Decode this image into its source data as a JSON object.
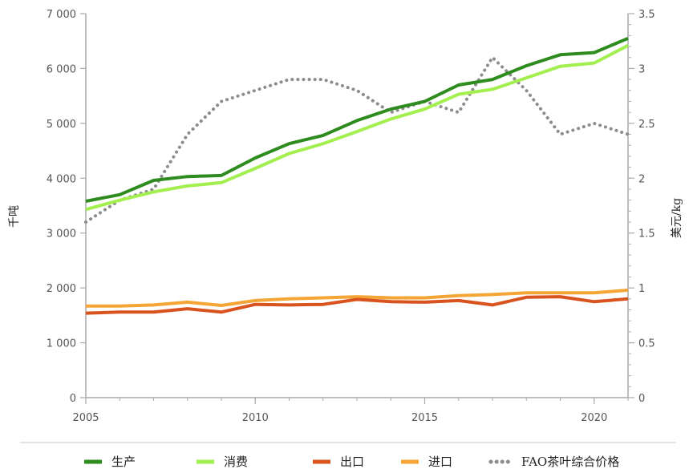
{
  "chart_data": {
    "type": "line",
    "title": "",
    "x": [
      2005,
      2006,
      2007,
      2008,
      2009,
      2010,
      2011,
      2012,
      2013,
      2014,
      2015,
      2016,
      2017,
      2018,
      2019,
      2020,
      2021
    ],
    "x_ticks": [
      "2005",
      "2010",
      "2015",
      "2020"
    ],
    "xlim": [
      2005,
      2021
    ],
    "ylabel_left": "千吨",
    "ylabel_right": "美元/kg",
    "ylim_left": [
      0,
      7000
    ],
    "ylim_right": [
      0,
      3.5
    ],
    "y_ticks_left": [
      "0",
      "1 000",
      "2 000",
      "3 000",
      "4 000",
      "5 000",
      "6 000",
      "7 000"
    ],
    "y_ticks_right": [
      "0",
      "0.5",
      "1",
      "1.5",
      "2",
      "2.5",
      "3",
      "3.5"
    ],
    "grid": false,
    "legend_position": "bottom",
    "series": [
      {
        "name": "生产",
        "axis": "left",
        "color": "#2e8b1e",
        "style": "solid",
        "values": [
          3580,
          3700,
          3960,
          4030,
          4050,
          4370,
          4630,
          4780,
          5050,
          5260,
          5400,
          5700,
          5800,
          6050,
          6250,
          6290,
          6550
        ]
      },
      {
        "name": "消费",
        "axis": "left",
        "color": "#a3ef50",
        "style": "solid",
        "values": [
          3430,
          3600,
          3750,
          3860,
          3920,
          4180,
          4450,
          4630,
          4850,
          5080,
          5260,
          5530,
          5620,
          5830,
          6040,
          6100,
          6420
        ]
      },
      {
        "name": "出口",
        "axis": "left",
        "color": "#d9531e",
        "style": "solid",
        "values": [
          1540,
          1560,
          1560,
          1620,
          1560,
          1700,
          1690,
          1700,
          1790,
          1750,
          1740,
          1770,
          1690,
          1830,
          1840,
          1750,
          1800
        ]
      },
      {
        "name": "进口",
        "axis": "left",
        "color": "#f5a536",
        "style": "solid",
        "values": [
          1670,
          1670,
          1690,
          1740,
          1680,
          1770,
          1800,
          1820,
          1840,
          1820,
          1820,
          1860,
          1880,
          1910,
          1910,
          1910,
          1960
        ]
      },
      {
        "name": "FAO茶叶综合价格",
        "axis": "right",
        "color": "#8c8c8c",
        "style": "dotted",
        "values": [
          1.6,
          1.8,
          1.9,
          2.4,
          2.7,
          2.8,
          2.9,
          2.9,
          2.8,
          2.6,
          2.7,
          2.6,
          3.1,
          2.8,
          2.4,
          2.5,
          2.4
        ]
      }
    ]
  }
}
